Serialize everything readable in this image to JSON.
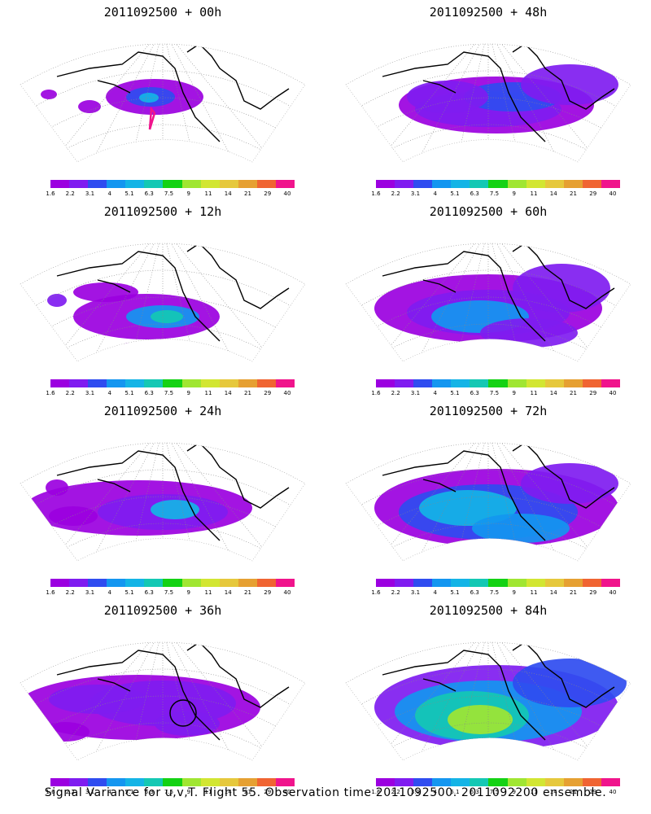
{
  "panels": [
    {
      "title": "2011092500 + 00h"
    },
    {
      "title": "2011092500 + 48h"
    },
    {
      "title": "2011092500 + 12h"
    },
    {
      "title": "2011092500 + 60h"
    },
    {
      "title": "2011092500 + 24h"
    },
    {
      "title": "2011092500 + 72h"
    },
    {
      "title": "2011092500 + 36h"
    },
    {
      "title": "2011092500 + 84h"
    }
  ],
  "colorbar": {
    "labels": [
      "1.6",
      "2.2",
      "3.1",
      "4",
      "5.1",
      "6.3",
      "7.5",
      "9",
      "11",
      "14",
      "21",
      "29",
      "40"
    ],
    "colors": [
      "#9b00e0",
      "#7f1cf0",
      "#2f4cf0",
      "#1496f0",
      "#14b4e6",
      "#14c8b4",
      "#14d214",
      "#a0e632",
      "#d2e632",
      "#e6c83c",
      "#e6a032",
      "#f06432",
      "#f0148c"
    ]
  },
  "footer": "Signal Variance for u,v,T. Flight 55. Observation time 2011092500. 2011092200 ensemble."
}
